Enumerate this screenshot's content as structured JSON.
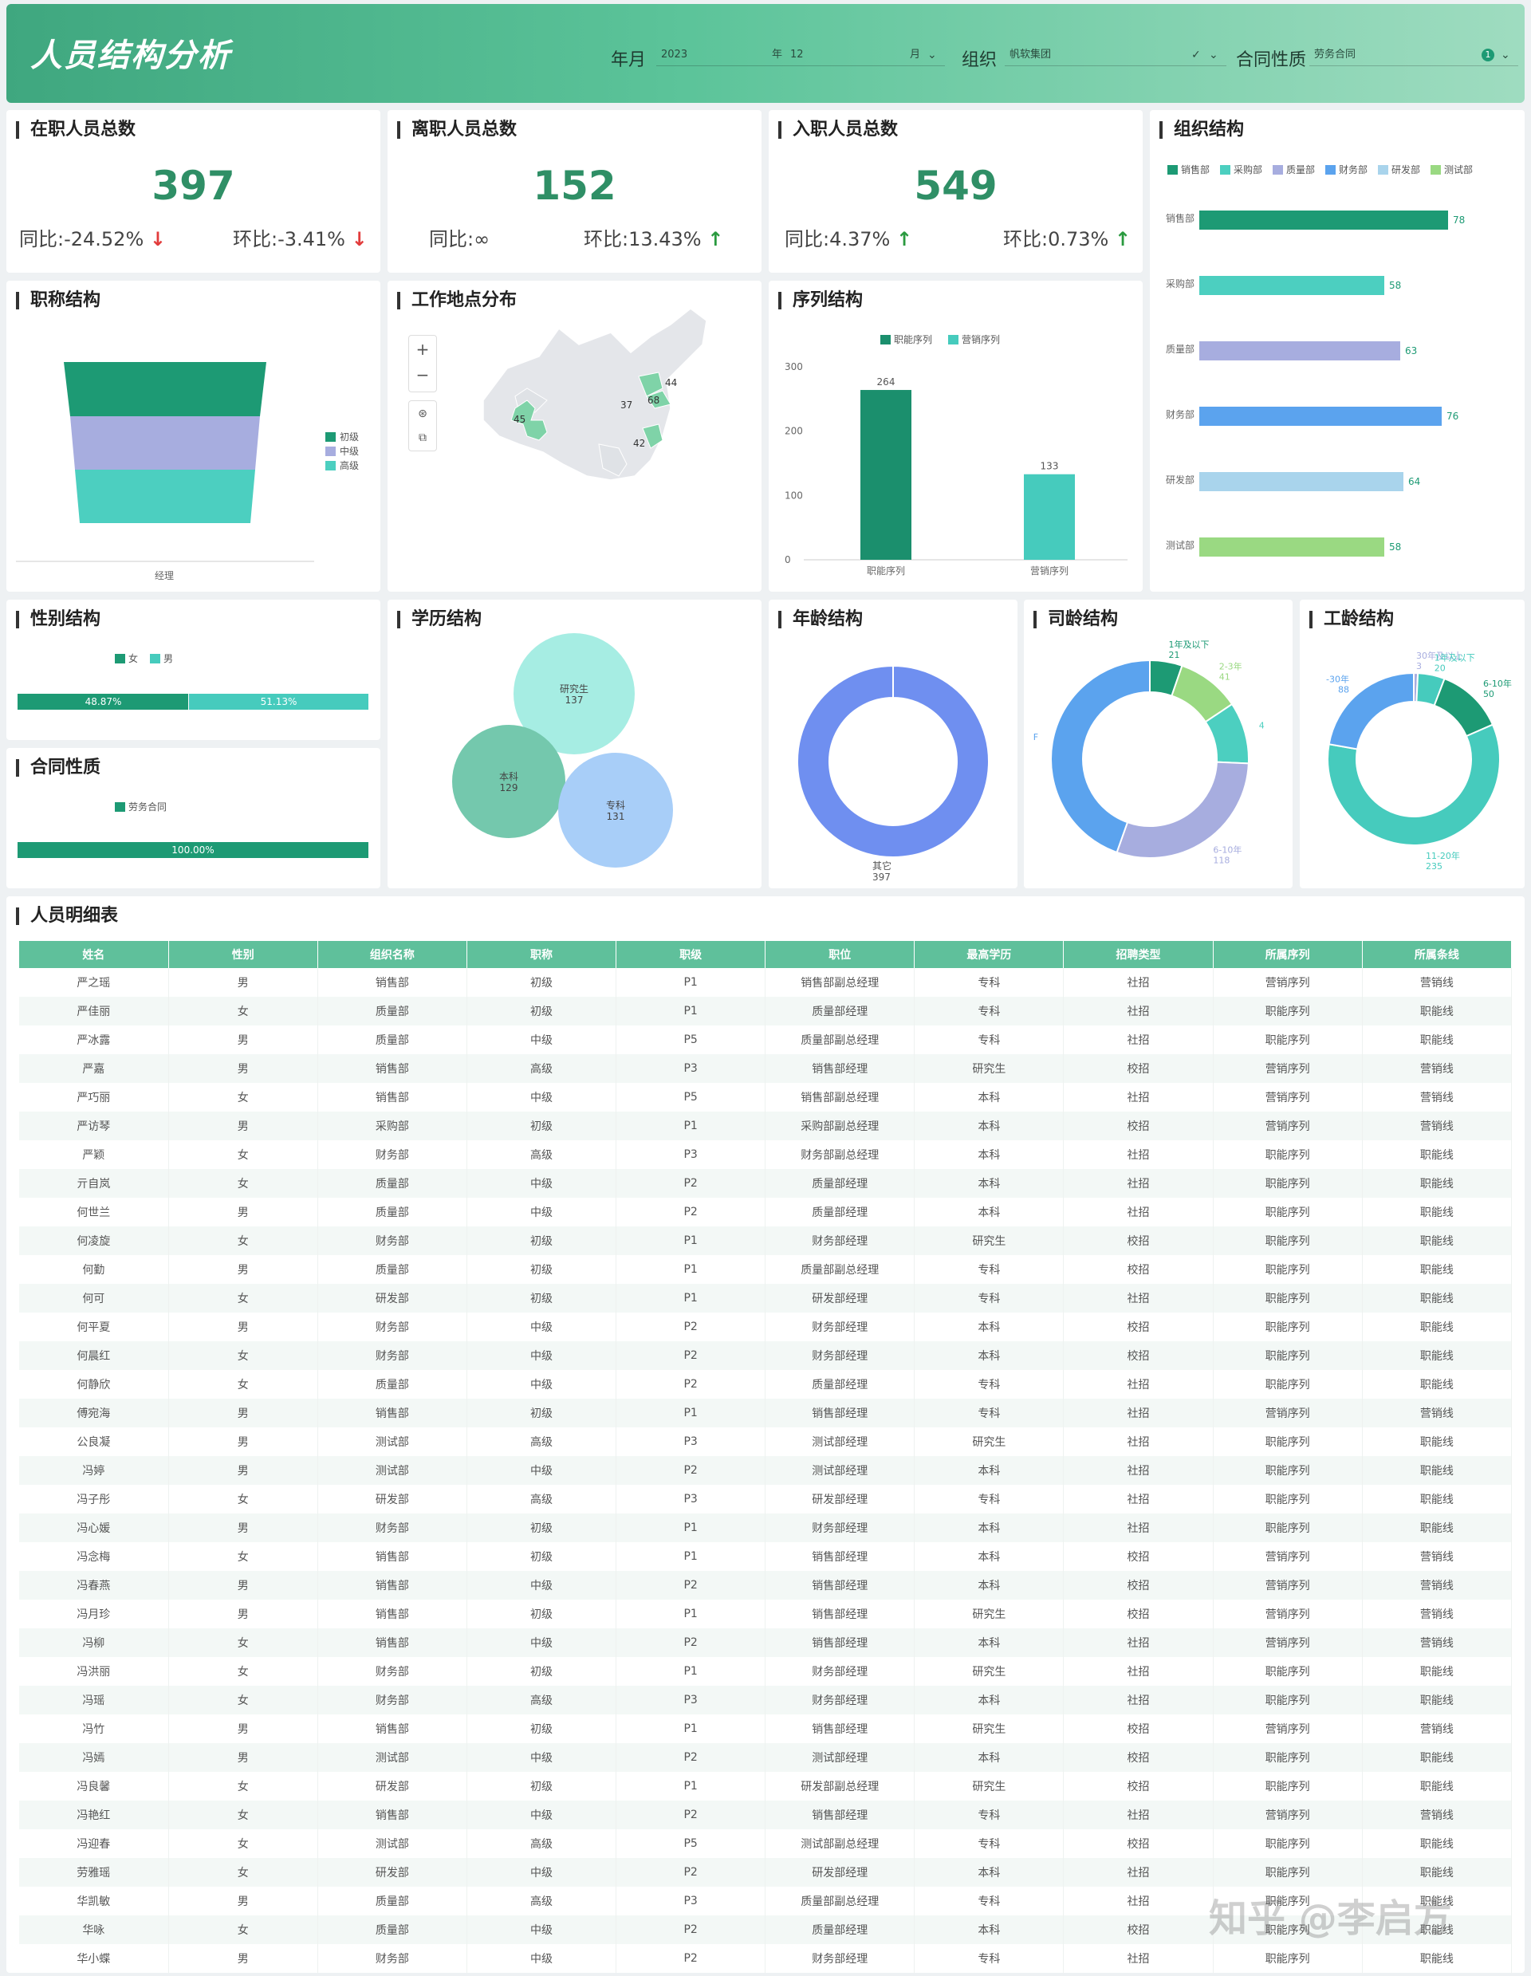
{
  "header": {
    "title": "人员结构分析",
    "filters": {
      "year_label": "年月",
      "year_value": "2023",
      "year_unit": "年",
      "month_value": "12",
      "month_unit": "月",
      "org_label": "组织",
      "org_value": "帆软集团",
      "contract_label": "合同性质",
      "contract_value": "劳务合同",
      "contract_count": "1"
    }
  },
  "kpis": {
    "active": {
      "title": "在职人员总数",
      "value": "397",
      "yoy": "同比:-24.52%",
      "mom": "环比:-3.41%"
    },
    "left": {
      "title": "离职人员总数",
      "value": "152",
      "yoy": "同比:∞",
      "mom": "环比:13.43%"
    },
    "joined": {
      "title": "入职人员总数",
      "value": "549",
      "yoy": "同比:4.37%",
      "mom": "环比:0.73%"
    }
  },
  "arrows": {
    "down": "↓",
    "up": "↑"
  },
  "org": {
    "title": "组织结构",
    "legend": [
      "销售部",
      "采购部",
      "质量部",
      "财务部",
      "研发部",
      "测试部"
    ],
    "chart_data": {
      "type": "bar",
      "orientation": "horizontal",
      "categories": [
        "销售部",
        "采购部",
        "质量部",
        "财务部",
        "研发部",
        "测试部"
      ],
      "values": [
        78,
        58,
        63,
        76,
        64,
        58
      ],
      "colors": [
        "#1d9a74",
        "#4ccfc0",
        "#a7addf",
        "#5ba3ee",
        "#a9d4ec",
        "#9ad982"
      ]
    }
  },
  "title_struct": {
    "title": "职称结构",
    "legend": [
      "初级",
      "中级",
      "高级"
    ],
    "xlabel": "经理",
    "chart_data": {
      "type": "funnel",
      "categories": [
        "初级",
        "中级",
        "高级"
      ],
      "colors": [
        "#1d9a74",
        "#a7addf",
        "#4ccfc0"
      ]
    }
  },
  "location": {
    "title": "工作地点分布",
    "zoom_in": "+",
    "zoom_out": "−",
    "chart_data": {
      "type": "map",
      "labels": [
        "45",
        "37",
        "44",
        "68",
        "42"
      ]
    }
  },
  "sequence": {
    "title": "序列结构",
    "legend": [
      "职能序列",
      "营销序列"
    ],
    "chart_data": {
      "type": "bar",
      "categories": [
        "职能序列",
        "营销序列"
      ],
      "values": [
        264,
        133
      ],
      "yticks": [
        "0",
        "100",
        "200",
        "300"
      ],
      "ylim": [
        0,
        300
      ],
      "colors": [
        "#1b8f6d",
        "#46cbbd"
      ]
    }
  },
  "gender": {
    "title": "性别结构",
    "legend": [
      "女",
      "男"
    ],
    "chart_data": {
      "type": "bar",
      "stacked": true,
      "categories": [
        "女",
        "男"
      ],
      "values": [
        48.87,
        51.13
      ],
      "labels": [
        "48.87%",
        "51.13%"
      ],
      "colors": [
        "#1d9a74",
        "#46cbbd"
      ]
    }
  },
  "contract": {
    "title": "合同性质",
    "legend": [
      "劳务合同"
    ],
    "chart_data": {
      "type": "bar",
      "stacked": true,
      "categories": [
        "劳务合同"
      ],
      "values": [
        100
      ],
      "labels": [
        "100.00%"
      ],
      "colors": [
        "#1d9a74"
      ]
    }
  },
  "education": {
    "title": "学历结构",
    "chart_data": {
      "type": "bubble",
      "categories": [
        "研究生",
        "本科",
        "专科"
      ],
      "values": [
        137,
        129,
        131
      ],
      "colors": [
        "#a6ede3",
        "#74c8ad",
        "#a8cef8"
      ]
    }
  },
  "age": {
    "title": "年龄结构",
    "chart_data": {
      "type": "pie",
      "donut": true,
      "categories": [
        "其它"
      ],
      "values": [
        397
      ],
      "colors": [
        "#6f8ff0"
      ]
    }
  },
  "tenure": {
    "title": "司龄结构",
    "chart_data": {
      "type": "pie",
      "donut": true,
      "categories": [
        "1年及以下",
        "2-3年",
        "4",
        "6-10年",
        "F"
      ],
      "labels": [
        "1年及以下",
        "2-3年",
        "4",
        "6-10年",
        "F"
      ],
      "values": [
        21,
        41,
        40,
        118,
        177
      ],
      "value_labels": [
        "21",
        "41",
        "",
        "118",
        ""
      ],
      "colors": [
        "#1d9a74",
        "#9ad982",
        "#4ccfc0",
        "#a7addf",
        "#5ba3ee"
      ]
    }
  },
  "work_years": {
    "title": "工龄结构",
    "chart_data": {
      "type": "pie",
      "donut": true,
      "categories": [
        "30年及以上",
        "1年及以下",
        "6-10年",
        "11-20年",
        "-30年"
      ],
      "values": [
        3,
        20,
        50,
        235,
        88
      ],
      "colors": [
        "#a7addf",
        "#46cbbd",
        "#1d9a74",
        "#46cbbd",
        "#5ba3ee"
      ]
    }
  },
  "detail": {
    "title": "人员明细表",
    "columns": [
      "姓名",
      "性别",
      "组织名称",
      "职称",
      "职级",
      "职位",
      "最高学历",
      "招聘类型",
      "所属序列",
      "所属条线"
    ],
    "rows": [
      [
        "严之瑶",
        "男",
        "销售部",
        "初级",
        "P1",
        "销售部副总经理",
        "专科",
        "社招",
        "营销序列",
        "营销线"
      ],
      [
        "严佳丽",
        "女",
        "质量部",
        "初级",
        "P1",
        "质量部经理",
        "专科",
        "社招",
        "职能序列",
        "职能线"
      ],
      [
        "严冰露",
        "男",
        "质量部",
        "中级",
        "P5",
        "质量部副总经理",
        "专科",
        "社招",
        "职能序列",
        "职能线"
      ],
      [
        "严嘉",
        "男",
        "销售部",
        "高级",
        "P3",
        "销售部经理",
        "研究生",
        "校招",
        "营销序列",
        "营销线"
      ],
      [
        "严巧丽",
        "女",
        "销售部",
        "中级",
        "P5",
        "销售部副总经理",
        "本科",
        "社招",
        "营销序列",
        "营销线"
      ],
      [
        "严访琴",
        "男",
        "采购部",
        "初级",
        "P1",
        "采购部副总经理",
        "本科",
        "校招",
        "营销序列",
        "营销线"
      ],
      [
        "严颖",
        "女",
        "财务部",
        "高级",
        "P3",
        "财务部副总经理",
        "本科",
        "社招",
        "职能序列",
        "职能线"
      ],
      [
        "亓自岚",
        "女",
        "质量部",
        "中级",
        "P2",
        "质量部经理",
        "本科",
        "社招",
        "职能序列",
        "职能线"
      ],
      [
        "何世兰",
        "男",
        "质量部",
        "中级",
        "P2",
        "质量部经理",
        "本科",
        "社招",
        "职能序列",
        "职能线"
      ],
      [
        "何凌旋",
        "女",
        "财务部",
        "初级",
        "P1",
        "财务部经理",
        "研究生",
        "校招",
        "职能序列",
        "职能线"
      ],
      [
        "何勤",
        "男",
        "质量部",
        "初级",
        "P1",
        "质量部副总经理",
        "专科",
        "校招",
        "职能序列",
        "职能线"
      ],
      [
        "何可",
        "女",
        "研发部",
        "初级",
        "P1",
        "研发部经理",
        "专科",
        "社招",
        "职能序列",
        "职能线"
      ],
      [
        "何平夏",
        "男",
        "财务部",
        "中级",
        "P2",
        "财务部经理",
        "本科",
        "校招",
        "职能序列",
        "职能线"
      ],
      [
        "何晨红",
        "女",
        "财务部",
        "中级",
        "P2",
        "财务部经理",
        "本科",
        "校招",
        "职能序列",
        "职能线"
      ],
      [
        "何静欣",
        "女",
        "质量部",
        "中级",
        "P2",
        "质量部经理",
        "专科",
        "社招",
        "职能序列",
        "职能线"
      ],
      [
        "傅宛海",
        "男",
        "销售部",
        "初级",
        "P1",
        "销售部经理",
        "专科",
        "社招",
        "营销序列",
        "营销线"
      ],
      [
        "公良凝",
        "男",
        "测试部",
        "高级",
        "P3",
        "测试部经理",
        "研究生",
        "社招",
        "职能序列",
        "职能线"
      ],
      [
        "冯婷",
        "男",
        "测试部",
        "中级",
        "P2",
        "测试部经理",
        "本科",
        "社招",
        "职能序列",
        "职能线"
      ],
      [
        "冯子彤",
        "女",
        "研发部",
        "高级",
        "P3",
        "研发部经理",
        "专科",
        "社招",
        "职能序列",
        "职能线"
      ],
      [
        "冯心媛",
        "男",
        "财务部",
        "初级",
        "P1",
        "财务部经理",
        "本科",
        "社招",
        "职能序列",
        "职能线"
      ],
      [
        "冯念梅",
        "女",
        "销售部",
        "初级",
        "P1",
        "销售部经理",
        "本科",
        "校招",
        "营销序列",
        "营销线"
      ],
      [
        "冯春燕",
        "男",
        "销售部",
        "中级",
        "P2",
        "销售部经理",
        "本科",
        "校招",
        "营销序列",
        "营销线"
      ],
      [
        "冯月珍",
        "男",
        "销售部",
        "初级",
        "P1",
        "销售部经理",
        "研究生",
        "校招",
        "营销序列",
        "营销线"
      ],
      [
        "冯柳",
        "女",
        "销售部",
        "中级",
        "P2",
        "销售部经理",
        "本科",
        "社招",
        "营销序列",
        "营销线"
      ],
      [
        "冯洪丽",
        "女",
        "财务部",
        "初级",
        "P1",
        "财务部经理",
        "研究生",
        "社招",
        "职能序列",
        "职能线"
      ],
      [
        "冯瑶",
        "女",
        "财务部",
        "高级",
        "P3",
        "财务部经理",
        "本科",
        "社招",
        "职能序列",
        "职能线"
      ],
      [
        "冯竹",
        "男",
        "销售部",
        "初级",
        "P1",
        "销售部经理",
        "研究生",
        "校招",
        "营销序列",
        "营销线"
      ],
      [
        "冯嫣",
        "男",
        "测试部",
        "中级",
        "P2",
        "测试部经理",
        "本科",
        "校招",
        "职能序列",
        "职能线"
      ],
      [
        "冯良馨",
        "女",
        "研发部",
        "初级",
        "P1",
        "研发部副总经理",
        "研究生",
        "校招",
        "职能序列",
        "职能线"
      ],
      [
        "冯艳红",
        "女",
        "销售部",
        "中级",
        "P2",
        "销售部经理",
        "专科",
        "社招",
        "营销序列",
        "营销线"
      ],
      [
        "冯迎春",
        "女",
        "测试部",
        "高级",
        "P5",
        "测试部副总经理",
        "专科",
        "校招",
        "职能序列",
        "职能线"
      ],
      [
        "劳雅瑶",
        "女",
        "研发部",
        "中级",
        "P2",
        "研发部经理",
        "本科",
        "社招",
        "职能序列",
        "职能线"
      ],
      [
        "华凯敏",
        "男",
        "质量部",
        "高级",
        "P3",
        "质量部副总经理",
        "专科",
        "社招",
        "职能序列",
        "职能线"
      ],
      [
        "华咏",
        "女",
        "质量部",
        "中级",
        "P2",
        "质量部经理",
        "本科",
        "校招",
        "职能序列",
        "职能线"
      ],
      [
        "华小蝶",
        "男",
        "财务部",
        "中级",
        "P2",
        "财务部经理",
        "专科",
        "社招",
        "职能序列",
        "职能线"
      ]
    ]
  },
  "watermark": "知乎 @李启方"
}
